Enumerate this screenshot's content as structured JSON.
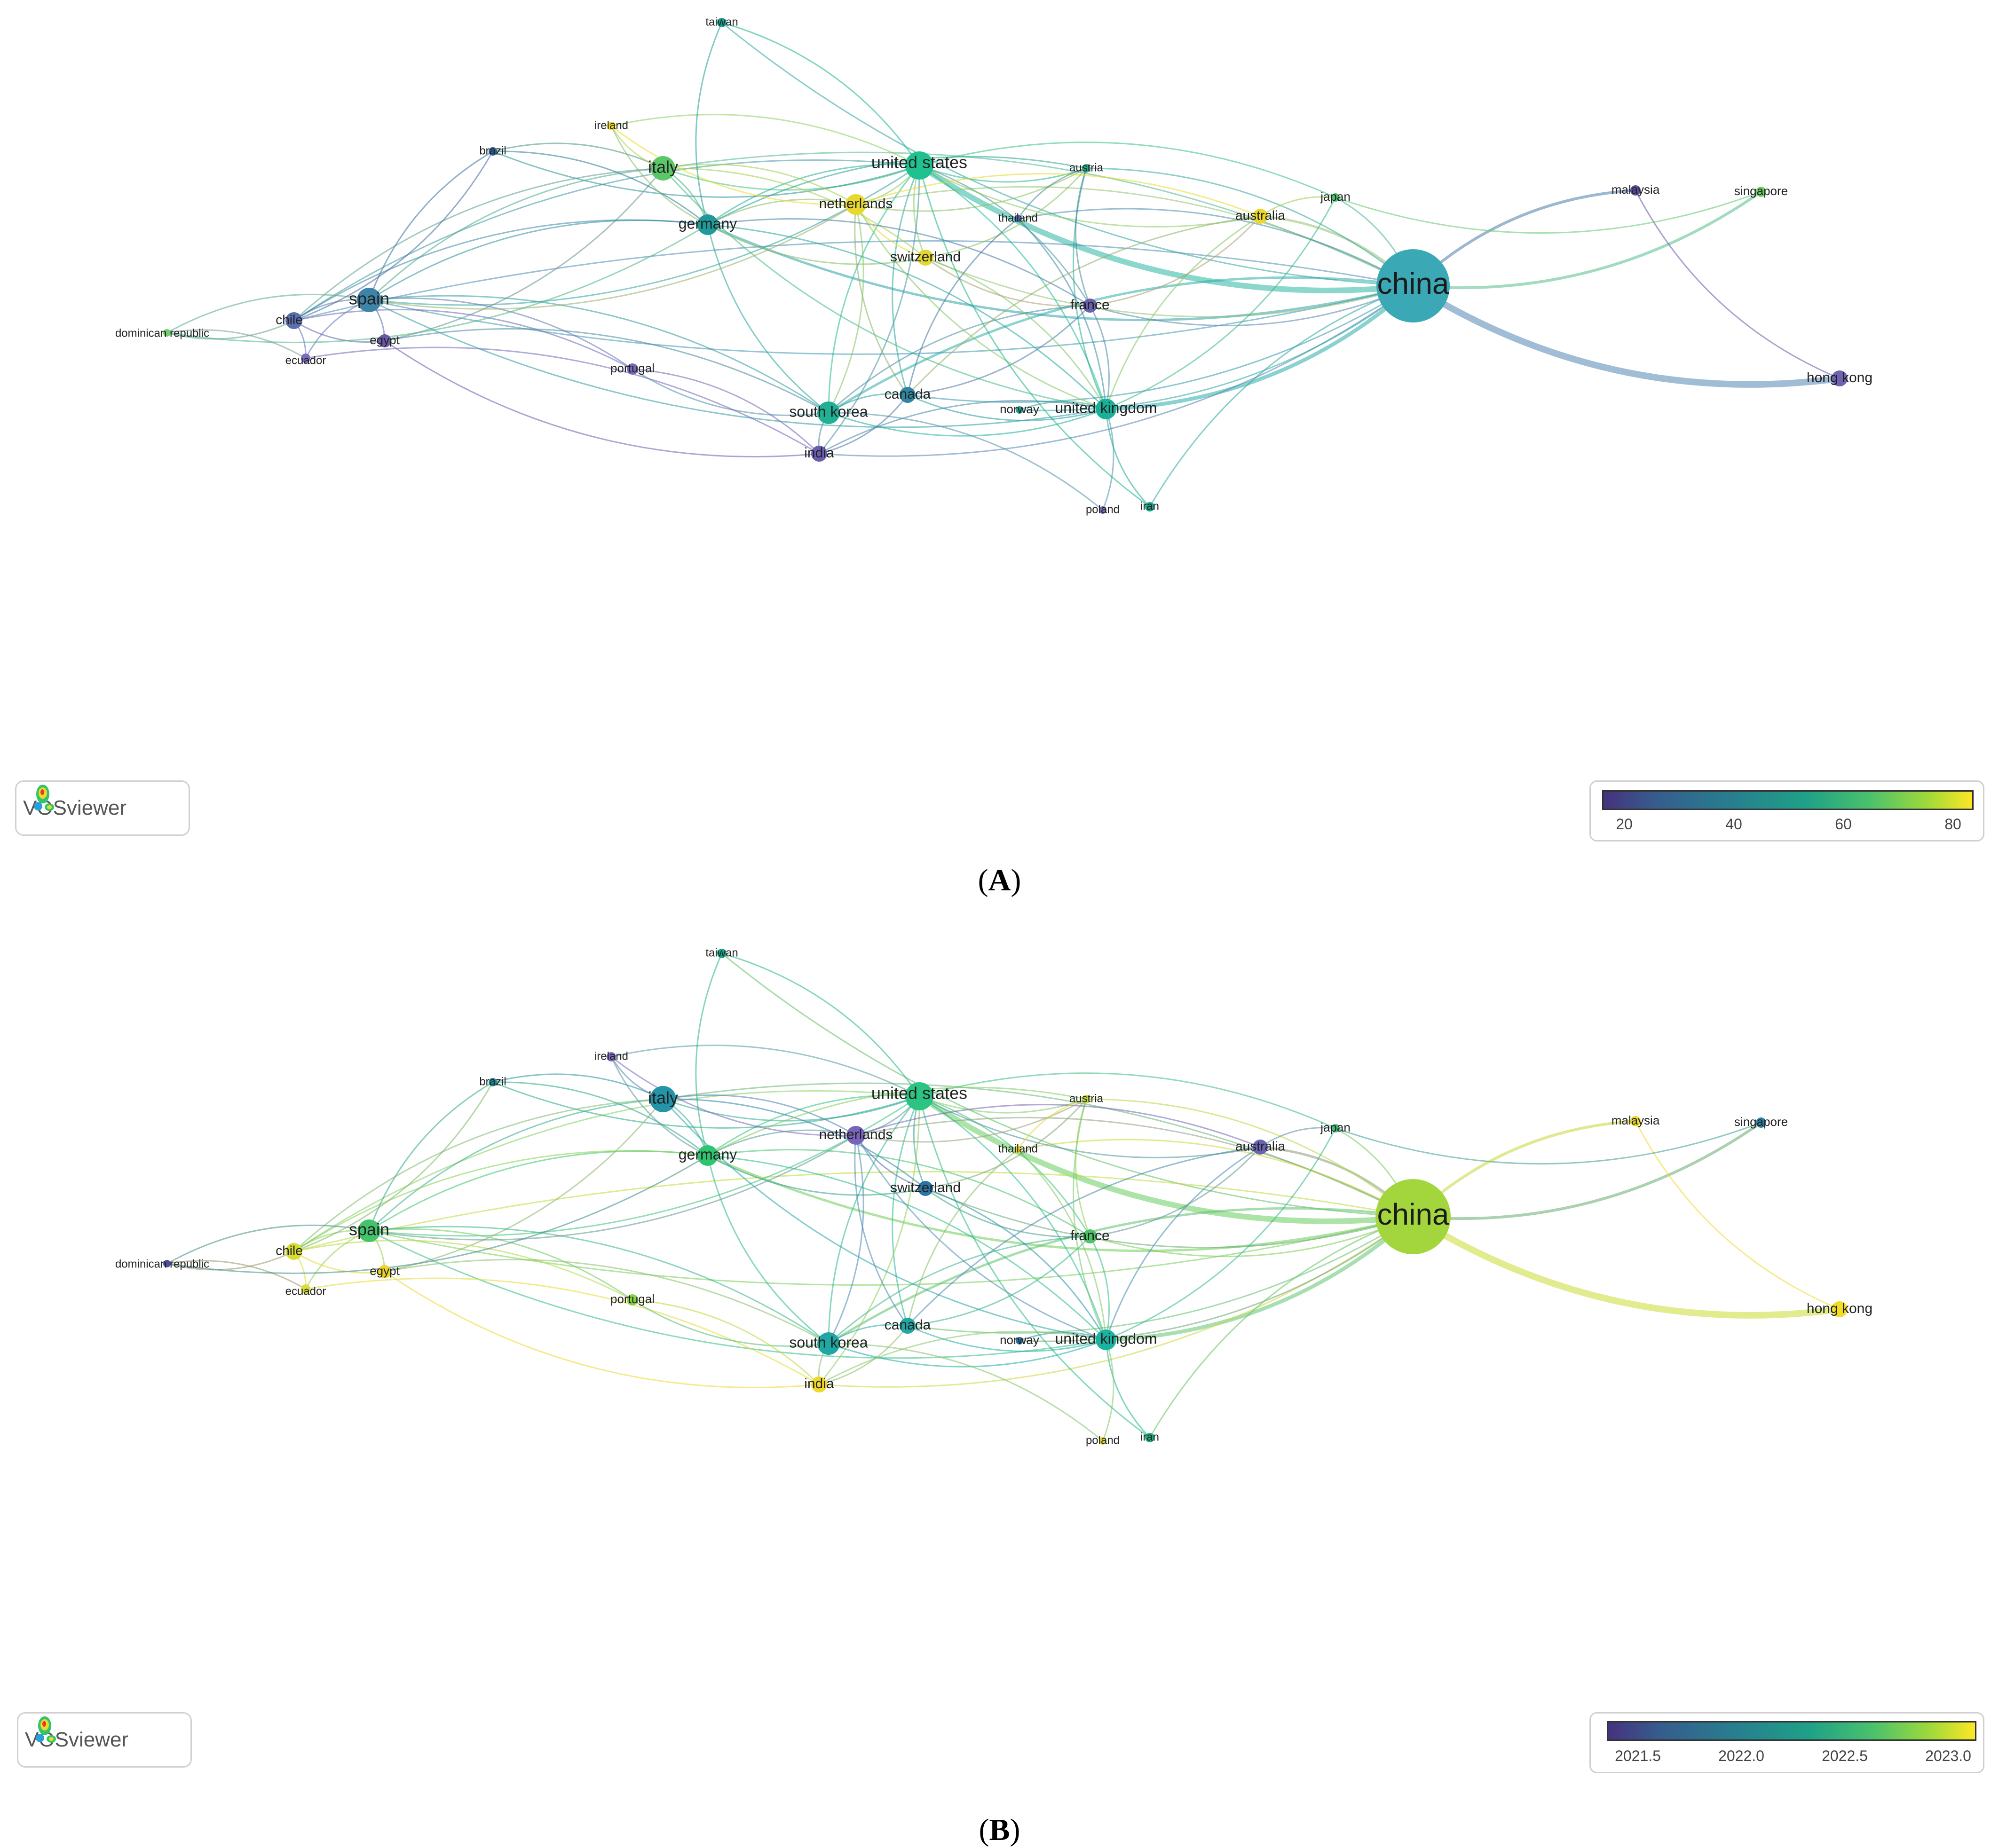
{
  "panels": [
    {
      "id": "A",
      "caption": "A",
      "badge": "VOSviewer",
      "legend_ticks": [
        "20",
        "40",
        "60",
        "80"
      ],
      "nodes": [
        {
          "name": "china",
          "color": "#3aa9b5",
          "r": 78,
          "big": true
        },
        {
          "name": "united states",
          "color": "#1ec28f",
          "r": 30
        },
        {
          "name": "italy",
          "color": "#5cc769",
          "r": 26
        },
        {
          "name": "germany",
          "color": "#1f9a9a",
          "r": 22
        },
        {
          "name": "spain",
          "color": "#3e83a8",
          "r": 26
        },
        {
          "name": "chile",
          "color": "#5a70b0",
          "r": 18
        },
        {
          "name": "egypt",
          "color": "#6a5aa8",
          "r": 14
        },
        {
          "name": "ecuador",
          "color": "#7b6bbf",
          "r": 10
        },
        {
          "name": "dominican republic",
          "color": "#6fd06a",
          "r": 8
        },
        {
          "name": "brazil",
          "color": "#2f5f96",
          "r": 9
        },
        {
          "name": "ireland",
          "color": "#f2dc2a",
          "r": 9
        },
        {
          "name": "taiwan",
          "color": "#17a28e",
          "r": 10
        },
        {
          "name": "netherlands",
          "color": "#e8d82e",
          "r": 22
        },
        {
          "name": "switzerland",
          "color": "#e3d830",
          "r": 17
        },
        {
          "name": "thailand",
          "color": "#4d6aa6",
          "r": 8
        },
        {
          "name": "austria",
          "color": "#2aa582",
          "r": 9
        },
        {
          "name": "australia",
          "color": "#ecd82a",
          "r": 16
        },
        {
          "name": "japan",
          "color": "#4cc070",
          "r": 9
        },
        {
          "name": "malaysia",
          "color": "#5a4d9e",
          "r": 11
        },
        {
          "name": "singapore",
          "color": "#6fd065",
          "r": 11
        },
        {
          "name": "france",
          "color": "#6a61b1",
          "r": 15
        },
        {
          "name": "portugal",
          "color": "#7a68b5",
          "r": 12
        },
        {
          "name": "canada",
          "color": "#2f86a2",
          "r": 17
        },
        {
          "name": "south korea",
          "color": "#1fb194",
          "r": 24
        },
        {
          "name": "india",
          "color": "#6a5cae",
          "r": 17
        },
        {
          "name": "norway",
          "color": "#27a08e",
          "r": 8
        },
        {
          "name": "united kingdom",
          "color": "#18b098",
          "r": 22
        },
        {
          "name": "poland",
          "color": "#7b6cbd",
          "r": 8
        },
        {
          "name": "iran",
          "color": "#18a688",
          "r": 10
        },
        {
          "name": "hong kong",
          "color": "#6e62b3",
          "r": 17
        }
      ]
    },
    {
      "id": "B",
      "caption": "B",
      "badge": "VOSviewer",
      "legend_ticks": [
        "2021.5",
        "2022.0",
        "2022.5",
        "2023.0"
      ],
      "nodes": [
        {
          "name": "china",
          "color": "#a3d63d",
          "r": 80,
          "big": true
        },
        {
          "name": "united states",
          "color": "#2bc483",
          "r": 30
        },
        {
          "name": "italy",
          "color": "#2494a8",
          "r": 28
        },
        {
          "name": "germany",
          "color": "#2fc46f",
          "r": 22
        },
        {
          "name": "spain",
          "color": "#44c46a",
          "r": 24
        },
        {
          "name": "chile",
          "color": "#d8dd34",
          "r": 18
        },
        {
          "name": "egypt",
          "color": "#ead62c",
          "r": 14
        },
        {
          "name": "ecuador",
          "color": "#d8df3a",
          "r": 10
        },
        {
          "name": "dominican republic",
          "color": "#4d4f9e",
          "r": 8
        },
        {
          "name": "brazil",
          "color": "#1f8a96",
          "r": 9
        },
        {
          "name": "ireland",
          "color": "#7a6bc0",
          "r": 10
        },
        {
          "name": "taiwan",
          "color": "#19a388",
          "r": 10
        },
        {
          "name": "netherlands",
          "color": "#7765bd",
          "r": 20
        },
        {
          "name": "switzerland",
          "color": "#2c73a6",
          "r": 16
        },
        {
          "name": "thailand",
          "color": "#ecd82b",
          "r": 8
        },
        {
          "name": "austria",
          "color": "#c8d83a",
          "r": 9
        },
        {
          "name": "australia",
          "color": "#6a63b3",
          "r": 16
        },
        {
          "name": "japan",
          "color": "#44bb7a",
          "r": 9
        },
        {
          "name": "malaysia",
          "color": "#ecd82a",
          "r": 11
        },
        {
          "name": "singapore",
          "color": "#2d7fa3",
          "r": 11
        },
        {
          "name": "france",
          "color": "#4dc266",
          "r": 15
        },
        {
          "name": "portugal",
          "color": "#8bd246",
          "r": 12
        },
        {
          "name": "canada",
          "color": "#20a7a0",
          "r": 17
        },
        {
          "name": "south korea",
          "color": "#1fa7a3",
          "r": 24
        },
        {
          "name": "india",
          "color": "#f0d82a",
          "r": 17
        },
        {
          "name": "norway",
          "color": "#2f6ea5",
          "r": 8
        },
        {
          "name": "united kingdom",
          "color": "#19b3a0",
          "r": 22
        },
        {
          "name": "poland",
          "color": "#e8d82f",
          "r": 8
        },
        {
          "name": "iran",
          "color": "#1cae7d",
          "r": 10
        },
        {
          "name": "hong kong",
          "color": "#f2dd25",
          "r": 17
        }
      ]
    }
  ]
}
